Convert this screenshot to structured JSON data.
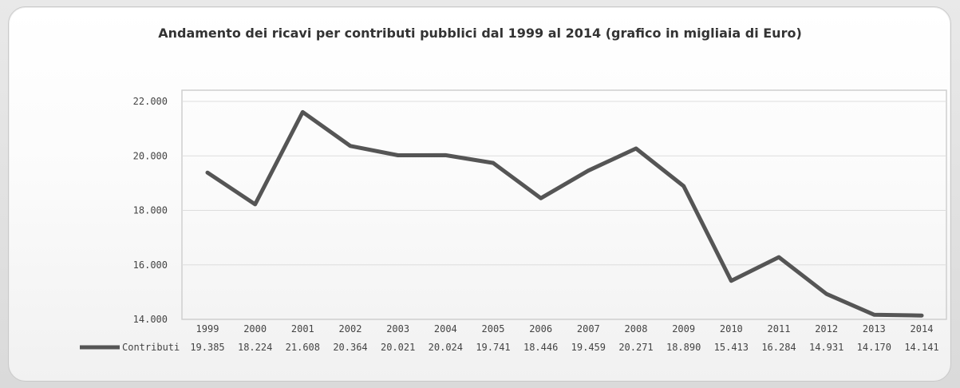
{
  "chart_data": {
    "type": "line",
    "title": "Andamento dei ricavi per contributi pubblici dal 1999 al 2014 (grafico in migliaia di Euro)",
    "categories": [
      "1999",
      "2000",
      "2001",
      "2002",
      "2003",
      "2004",
      "2005",
      "2006",
      "2007",
      "2008",
      "2009",
      "2010",
      "2011",
      "2012",
      "2013",
      "2014"
    ],
    "series": [
      {
        "name": "Contributi",
        "values": [
          19385,
          18224,
          21608,
          20364,
          20021,
          20024,
          19741,
          18446,
          19459,
          20271,
          18890,
          15413,
          16284,
          14931,
          14170,
          14141
        ],
        "labels": [
          "19.385",
          "18.224",
          "21.608",
          "20.364",
          "20.021",
          "20.024",
          "19.741",
          "18.446",
          "19.459",
          "20.271",
          "18.890",
          "15.413",
          "16.284",
          "14.931",
          "14.170",
          "14.141"
        ],
        "color": "#555555"
      }
    ],
    "ylim": [
      14000,
      22000
    ],
    "yticks": [
      14000,
      16000,
      18000,
      20000,
      22000
    ],
    "ytick_labels": [
      "14.000",
      "16.000",
      "18.000",
      "20.000",
      "22.000"
    ],
    "grid": true,
    "legend": "bottom-left (data table)"
  }
}
